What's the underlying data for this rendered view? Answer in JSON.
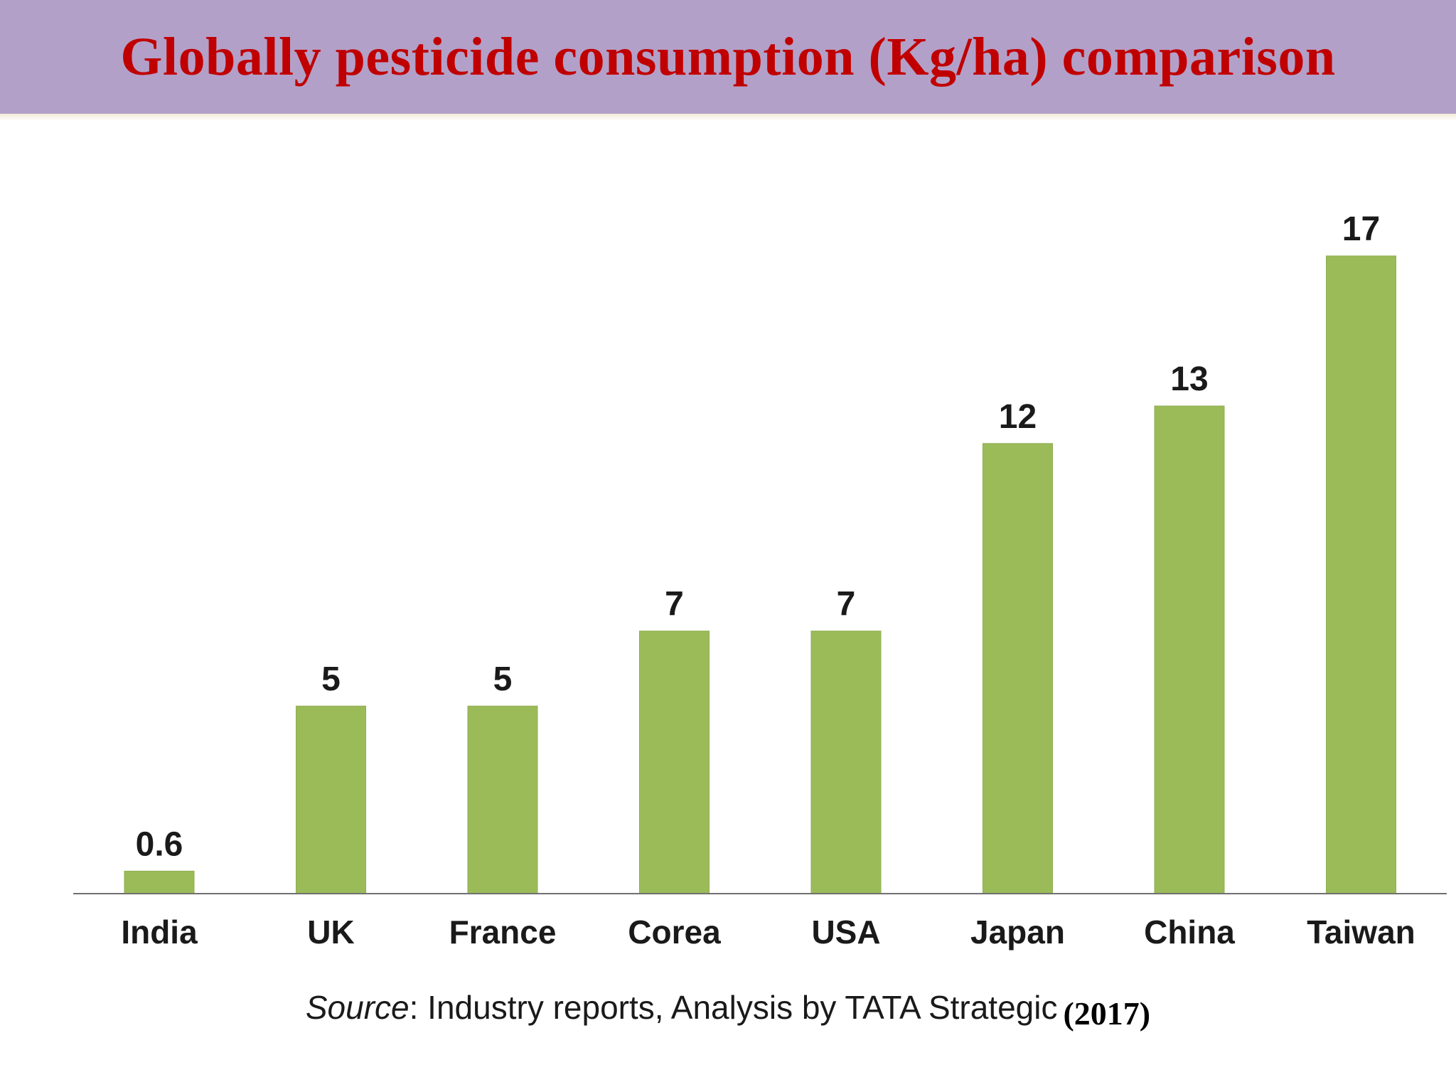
{
  "title": "Globally pesticide consumption (Kg/ha) comparison",
  "source": {
    "label": "Source",
    "text": ": Industry reports, Analysis by TATA Strategic",
    "year": "(2017)"
  },
  "colors": {
    "title_bar": "#b3a0c8",
    "title_text": "#c00000",
    "bar": "#9bbb59"
  },
  "chart_data": {
    "type": "bar",
    "title": "Globally pesticide consumption (Kg/ha) comparison",
    "categories": [
      "India",
      "UK",
      "France",
      "Corea",
      "USA",
      "Japan",
      "China",
      "Taiwan"
    ],
    "values": [
      0.6,
      5,
      5,
      7,
      7,
      12,
      13,
      17
    ],
    "data_labels": [
      "0.6",
      "5",
      "5",
      "7",
      "7",
      "12",
      "13",
      "17"
    ],
    "xlabel": "",
    "ylabel": "",
    "ylim": [
      0,
      17
    ],
    "grid": false,
    "legend": "none",
    "bar_color": "#9bbb59"
  }
}
